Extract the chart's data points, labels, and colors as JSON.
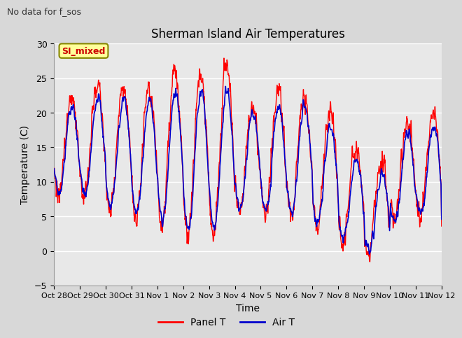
{
  "title": "Sherman Island Air Temperatures",
  "subtitle": "No data for f_sos",
  "xlabel": "Time",
  "ylabel": "Temperature (C)",
  "ylim": [
    -5,
    30
  ],
  "yticks": [
    -5,
    0,
    5,
    10,
    15,
    20,
    25,
    30
  ],
  "xtick_labels": [
    "Oct 28",
    "Oct 29",
    "Oct 30",
    "Oct 31",
    "Nov 1",
    "Nov 2",
    "Nov 3",
    "Nov 4",
    "Nov 5",
    "Nov 6",
    "Nov 7",
    "Nov 8",
    "Nov 9",
    "Nov 10",
    "Nov 11",
    "Nov 12"
  ],
  "legend_entries": [
    "Panel T",
    "Air T"
  ],
  "panel_t_color": "#ff0000",
  "air_t_color": "#0000cc",
  "background_color": "#d8d8d8",
  "plot_bg_color": "#e8e8e8",
  "grid_color": "#ffffff",
  "legend_label": "SI_mixed",
  "legend_label_color": "#cc0000",
  "legend_label_bg": "#ffff99",
  "legend_label_edge": "#888800",
  "n_days": 15,
  "subtitle_fontsize": 9,
  "title_fontsize": 12,
  "axis_label_fontsize": 10,
  "tick_fontsize": 9
}
